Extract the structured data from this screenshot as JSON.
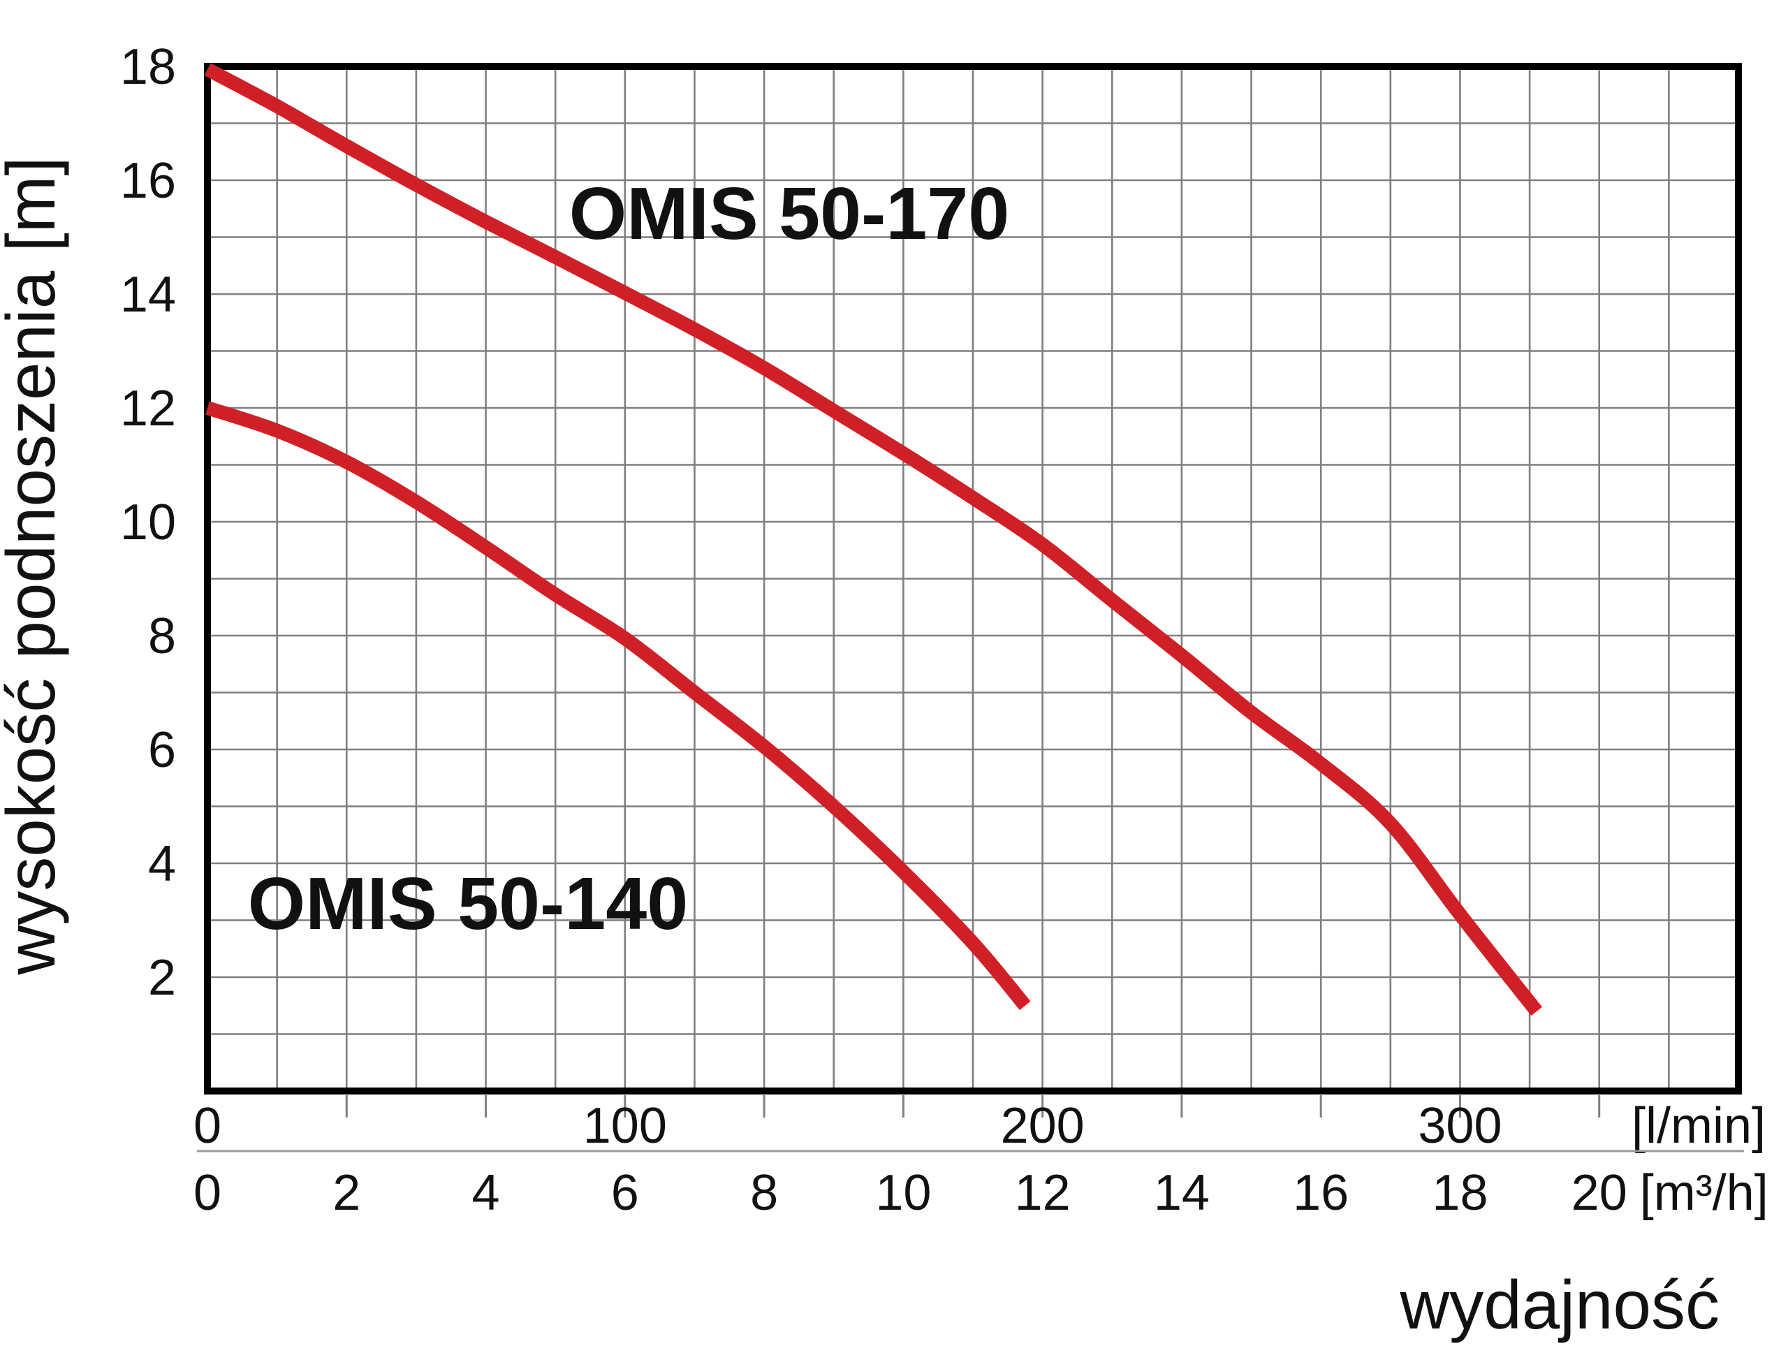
{
  "page": {
    "background": "#ffffff"
  },
  "chart_data": {
    "type": "line",
    "title": "",
    "x_axis": {
      "label": "wydajność",
      "primary_unit": "[l/min]",
      "primary_ticks": [
        0,
        100,
        200,
        300
      ],
      "secondary_unit": "[m³/h]",
      "secondary_ticks": [
        0,
        2,
        4,
        6,
        8,
        10,
        12,
        14,
        16,
        18,
        20
      ],
      "range_m3h": [
        0,
        22
      ],
      "gridline_step_m3h": 1,
      "lmin_per_m3h": 16.6667
    },
    "y_axis": {
      "label": "wysokość podnoszenia [m]",
      "ticks": [
        2,
        4,
        6,
        8,
        10,
        12,
        14,
        16,
        18
      ],
      "range_m": [
        0,
        18
      ],
      "gridline_step_m": 1
    },
    "series": [
      {
        "name": "OMIS 50-170",
        "points_m3h_m": [
          [
            0,
            17.95
          ],
          [
            1,
            17.3
          ],
          [
            2,
            16.6
          ],
          [
            3,
            15.92
          ],
          [
            4,
            15.27
          ],
          [
            5,
            14.65
          ],
          [
            6,
            14.02
          ],
          [
            7,
            13.38
          ],
          [
            8,
            12.7
          ],
          [
            9,
            11.95
          ],
          [
            10,
            11.2
          ],
          [
            11,
            10.42
          ],
          [
            12,
            9.6
          ],
          [
            13,
            8.62
          ],
          [
            14,
            7.65
          ],
          [
            15,
            6.65
          ],
          [
            16,
            5.75
          ],
          [
            17,
            4.7
          ],
          [
            18,
            3.1
          ],
          [
            19.1,
            1.4
          ]
        ]
      },
      {
        "name": "OMIS 50-140",
        "points_m3h_m": [
          [
            0,
            12.0
          ],
          [
            1,
            11.6
          ],
          [
            2,
            11.05
          ],
          [
            3,
            10.35
          ],
          [
            4,
            9.55
          ],
          [
            5,
            8.72
          ],
          [
            6,
            7.95
          ],
          [
            7,
            7.0
          ],
          [
            8,
            6.05
          ],
          [
            9,
            5.0
          ],
          [
            10,
            3.85
          ],
          [
            11,
            2.6
          ],
          [
            11.75,
            1.5
          ]
        ]
      }
    ],
    "grid": true,
    "legend_position": "labels-inside-plot",
    "colors": {
      "curve": "#d02027",
      "grid": "#7f7f7f",
      "axis": "#000000",
      "text": "#111111",
      "separator": "#999999",
      "background": "#ffffff"
    }
  }
}
